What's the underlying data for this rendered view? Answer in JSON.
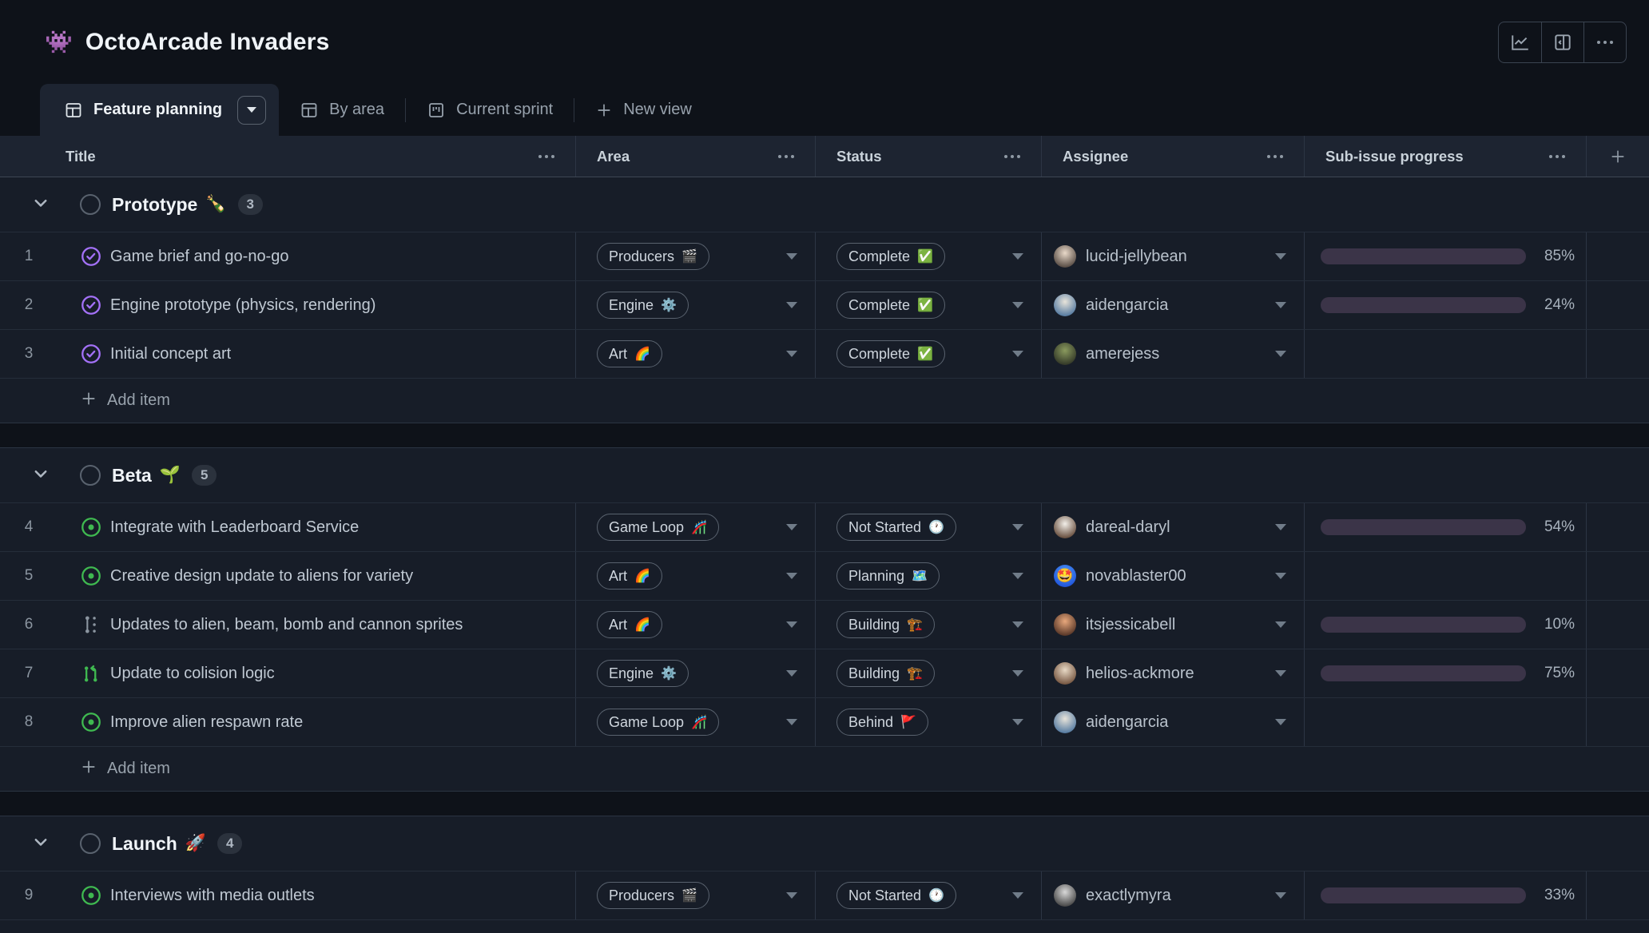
{
  "header": {
    "project_emoji": "👾",
    "title": "OctoArcade Invaders"
  },
  "tabs": {
    "active": "Feature planning",
    "others": [
      "By area",
      "Current sprint"
    ],
    "new_view": "New view"
  },
  "columns": [
    "Title",
    "Area",
    "Status",
    "Assignee",
    "Sub-issue progress"
  ],
  "add_item_label": "Add item",
  "colors": {
    "accent_purple": "#8d5ce8",
    "open_green": "#3fb950",
    "done_purple": "#a371f7",
    "progress_track": "#3b3448"
  },
  "groups": [
    {
      "name": "Prototype",
      "emoji": "🍾",
      "count": 3,
      "has_add_item": true,
      "items": [
        {
          "number": 1,
          "state": "closed",
          "title": "Game brief and go-no-go",
          "area": {
            "label": "Producers",
            "emoji": "🎬"
          },
          "status": {
            "label": "Complete",
            "emoji": "✅"
          },
          "assignee": {
            "name": "lucid-jellybean",
            "avatar_colors": [
              "#e9d9c9",
              "#4a3f38"
            ]
          },
          "progress_percent": 85
        },
        {
          "number": 2,
          "state": "closed",
          "title": "Engine prototype (physics, rendering)",
          "area": {
            "label": "Engine",
            "emoji": "⚙️"
          },
          "status": {
            "label": "Complete",
            "emoji": "✅"
          },
          "assignee": {
            "name": "aidengarcia",
            "avatar_colors": [
              "#e8e4da",
              "#48719c"
            ]
          },
          "progress_percent": 24
        },
        {
          "number": 3,
          "state": "closed",
          "title": "Initial concept art",
          "area": {
            "label": "Art",
            "emoji": "🌈"
          },
          "status": {
            "label": "Complete",
            "emoji": "✅"
          },
          "assignee": {
            "name": "amerejess",
            "avatar_colors": [
              "#8a9a5e",
              "#2b2f23"
            ]
          },
          "progress_percent": null
        }
      ]
    },
    {
      "name": "Beta",
      "emoji": "🌱",
      "count": 5,
      "has_add_item": true,
      "items": [
        {
          "number": 4,
          "state": "open",
          "title": "Integrate with Leaderboard Service",
          "area": {
            "label": "Game Loop",
            "emoji": "🎢"
          },
          "status": {
            "label": "Not Started",
            "emoji": "🕐"
          },
          "assignee": {
            "name": "dareal-daryl",
            "avatar_colors": [
              "#f2efe9",
              "#5a3f2e"
            ]
          },
          "progress_percent": 54
        },
        {
          "number": 5,
          "state": "open",
          "title": "Creative design update to aliens for variety",
          "area": {
            "label": "Art",
            "emoji": "🌈"
          },
          "status": {
            "label": "Planning",
            "emoji": "🗺️"
          },
          "assignee": {
            "name": "novablaster00",
            "avatar_colors": [
              "#4f9cf7",
              "#1d4ed8"
            ],
            "avatar_emoji": "🤩"
          },
          "progress_percent": null
        },
        {
          "number": 6,
          "state": "subissues",
          "title": "Updates to alien, beam, bomb and cannon sprites",
          "area": {
            "label": "Art",
            "emoji": "🌈"
          },
          "status": {
            "label": "Building",
            "emoji": "🏗️"
          },
          "assignee": {
            "name": "itsjessicabell",
            "avatar_colors": [
              "#e8a87c",
              "#4a2c20"
            ]
          },
          "progress_percent": 10
        },
        {
          "number": 7,
          "state": "relation",
          "title": "Update to colision logic",
          "area": {
            "label": "Engine",
            "emoji": "⚙️"
          },
          "status": {
            "label": "Building",
            "emoji": "🏗️"
          },
          "assignee": {
            "name": "helios-ackmore",
            "avatar_colors": [
              "#e8d9c5",
              "#6b4a35"
            ]
          },
          "progress_percent": 75
        },
        {
          "number": 8,
          "state": "open",
          "title": "Improve alien respawn rate",
          "area": {
            "label": "Game Loop",
            "emoji": "🎢"
          },
          "status": {
            "label": "Behind",
            "emoji": "🚩"
          },
          "assignee": {
            "name": "aidengarcia",
            "avatar_colors": [
              "#e8e4da",
              "#48719c"
            ]
          },
          "progress_percent": null
        }
      ]
    },
    {
      "name": "Launch",
      "emoji": "🚀",
      "count": 4,
      "has_add_item": false,
      "partial": true,
      "items": [
        {
          "number": 9,
          "state": "open",
          "title": "Interviews with media outlets",
          "area": {
            "label": "Producers",
            "emoji": "🎬"
          },
          "status": {
            "label": "Not Started",
            "emoji": "🕐"
          },
          "assignee": {
            "name": "exactlymyra",
            "avatar_colors": [
              "#d8d8d8",
              "#3a3a3a"
            ]
          },
          "progress_percent": 33
        }
      ]
    }
  ]
}
